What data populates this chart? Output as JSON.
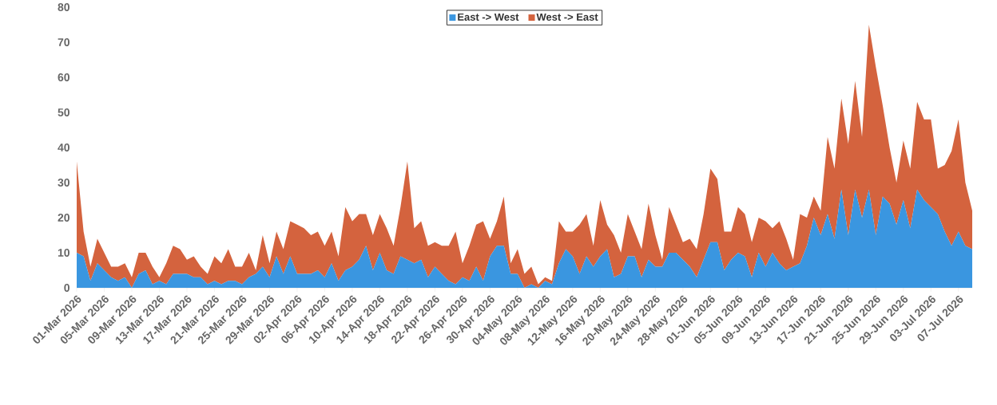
{
  "chart_data": {
    "type": "area",
    "stacked": true,
    "legend": "top",
    "x": [
      "2026-03-01",
      "2026-03-02",
      "2026-03-03",
      "2026-03-04",
      "2026-03-05",
      "2026-03-06",
      "2026-03-07",
      "2026-03-08",
      "2026-03-09",
      "2026-03-10",
      "2026-03-11",
      "2026-03-12",
      "2026-03-13",
      "2026-03-14",
      "2026-03-15",
      "2026-03-16",
      "2026-03-17",
      "2026-03-18",
      "2026-03-19",
      "2026-03-20",
      "2026-03-21",
      "2026-03-22",
      "2026-03-23",
      "2026-03-24",
      "2026-03-25",
      "2026-03-26",
      "2026-03-27",
      "2026-03-28",
      "2026-03-29",
      "2026-03-30",
      "2026-03-31",
      "2026-04-01",
      "2026-04-02",
      "2026-04-03",
      "2026-04-04",
      "2026-04-05",
      "2026-04-06",
      "2026-04-07",
      "2026-04-08",
      "2026-04-09",
      "2026-04-10",
      "2026-04-11",
      "2026-04-12",
      "2026-04-13",
      "2026-04-14",
      "2026-04-15",
      "2026-04-16",
      "2026-04-17",
      "2026-04-18",
      "2026-04-19",
      "2026-04-20",
      "2026-04-21",
      "2026-04-22",
      "2026-04-23",
      "2026-04-24",
      "2026-04-25",
      "2026-04-26",
      "2026-04-27",
      "2026-04-28",
      "2026-04-29",
      "2026-04-30",
      "2026-05-01",
      "2026-05-02",
      "2026-05-03",
      "2026-05-04",
      "2026-05-05",
      "2026-05-06",
      "2026-05-07",
      "2026-05-08",
      "2026-05-09",
      "2026-05-10",
      "2026-05-11",
      "2026-05-12",
      "2026-05-13",
      "2026-05-14",
      "2026-05-15",
      "2026-05-16",
      "2026-05-17",
      "2026-05-18",
      "2026-05-19",
      "2026-05-20",
      "2026-05-21",
      "2026-05-22",
      "2026-05-23",
      "2026-05-24",
      "2026-05-25",
      "2026-05-26",
      "2026-05-27",
      "2026-05-28",
      "2026-05-29",
      "2026-05-30",
      "2026-05-31",
      "2026-06-01",
      "2026-06-02",
      "2026-06-03",
      "2026-06-04",
      "2026-06-05",
      "2026-06-06",
      "2026-06-07",
      "2026-06-08",
      "2026-06-09",
      "2026-06-10",
      "2026-06-11",
      "2026-06-12",
      "2026-06-13",
      "2026-06-14",
      "2026-06-15",
      "2026-06-16",
      "2026-06-17",
      "2026-06-18",
      "2026-06-19",
      "2026-06-20",
      "2026-06-21",
      "2026-06-22",
      "2026-06-23",
      "2026-06-24",
      "2026-06-25",
      "2026-06-26",
      "2026-06-27",
      "2026-06-28",
      "2026-06-29",
      "2026-06-30",
      "2026-07-01",
      "2026-07-02",
      "2026-07-03",
      "2026-07-04",
      "2026-07-05",
      "2026-07-06",
      "2026-07-07",
      "2026-07-08",
      "2026-07-09"
    ],
    "series": [
      {
        "name": "East -> West",
        "color": "#3a96e0",
        "values": [
          10,
          9,
          2,
          7,
          5,
          3,
          2,
          3,
          0,
          4,
          5,
          1,
          2,
          1,
          4,
          4,
          4,
          3,
          3,
          1,
          2,
          1,
          2,
          2,
          1,
          3,
          4,
          6,
          3,
          9,
          4,
          9,
          4,
          4,
          4,
          5,
          3,
          7,
          2,
          5,
          6,
          8,
          12,
          5,
          10,
          5,
          4,
          9,
          8,
          7,
          8,
          3,
          6,
          4,
          2,
          1,
          3,
          2,
          6,
          2,
          9,
          12,
          12,
          4,
          4,
          0,
          1,
          0,
          2,
          1,
          7,
          11,
          9,
          4,
          9,
          6,
          9,
          11,
          3,
          4,
          9,
          9,
          3,
          8,
          6,
          6,
          10,
          10,
          8,
          6,
          3,
          8,
          13,
          13,
          5,
          8,
          10,
          9,
          3,
          10,
          6,
          10,
          7,
          5,
          6,
          7,
          12,
          20,
          15,
          21,
          14,
          28,
          15,
          28,
          20,
          28,
          15,
          26,
          24,
          18,
          25,
          17,
          28,
          25,
          23,
          21,
          16,
          12,
          16,
          12,
          11
        ]
      },
      {
        "name": "West -> East",
        "color": "#d4633e",
        "values": [
          26,
          7,
          4,
          7,
          5,
          3,
          4,
          4,
          3,
          6,
          5,
          5,
          1,
          6,
          8,
          7,
          4,
          6,
          3,
          3,
          7,
          6,
          9,
          4,
          5,
          7,
          1,
          9,
          4,
          7,
          7,
          10,
          14,
          13,
          11,
          11,
          9,
          9,
          7,
          18,
          13,
          13,
          9,
          10,
          11,
          12,
          8,
          14,
          28,
          10,
          11,
          9,
          7,
          8,
          10,
          15,
          4,
          10,
          12,
          17,
          5,
          7,
          14,
          3,
          7,
          4,
          5,
          1,
          1,
          1,
          12,
          5,
          7,
          14,
          12,
          6,
          16,
          7,
          12,
          6,
          12,
          7,
          8,
          16,
          9,
          2,
          13,
          8,
          5,
          8,
          8,
          13,
          21,
          18,
          11,
          8,
          13,
          12,
          10,
          10,
          13,
          7,
          12,
          9,
          2,
          14,
          8,
          6,
          7,
          22,
          20,
          26,
          26,
          31,
          23,
          47,
          48,
          26,
          16,
          12,
          17,
          17,
          25,
          23,
          25,
          13,
          19,
          27,
          32,
          18,
          11
        ]
      }
    ],
    "xlim": [
      "2026-03-01",
      "2026-07-09"
    ],
    "xticks": [
      {
        "value": "2026-03-01",
        "label": "01-Mar 2026"
      },
      {
        "value": "2026-03-05",
        "label": "05-Mar 2026"
      },
      {
        "value": "2026-03-09",
        "label": "09-Mar 2026"
      },
      {
        "value": "2026-03-13",
        "label": "13-Mar 2026"
      },
      {
        "value": "2026-03-17",
        "label": "17-Mar 2026"
      },
      {
        "value": "2026-03-21",
        "label": "21-Mar 2026"
      },
      {
        "value": "2026-03-25",
        "label": "25-Mar 2026"
      },
      {
        "value": "2026-03-29",
        "label": "29-Mar 2026"
      },
      {
        "value": "2026-04-02",
        "label": "02-Apr 2026"
      },
      {
        "value": "2026-04-06",
        "label": "06-Apr 2026"
      },
      {
        "value": "2026-04-10",
        "label": "10-Apr 2026"
      },
      {
        "value": "2026-04-14",
        "label": "14-Apr 2026"
      },
      {
        "value": "2026-04-18",
        "label": "18-Apr 2026"
      },
      {
        "value": "2026-04-22",
        "label": "22-Apr 2026"
      },
      {
        "value": "2026-04-26",
        "label": "26-Apr 2026"
      },
      {
        "value": "2026-04-30",
        "label": "30-Apr 2026"
      },
      {
        "value": "2026-05-04",
        "label": "04-May 2026"
      },
      {
        "value": "2026-05-08",
        "label": "08-May 2026"
      },
      {
        "value": "2026-05-12",
        "label": "12-May 2026"
      },
      {
        "value": "2026-05-16",
        "label": "16-May 2026"
      },
      {
        "value": "2026-05-20",
        "label": "20-May 2026"
      },
      {
        "value": "2026-05-24",
        "label": "24-May 2026"
      },
      {
        "value": "2026-05-28",
        "label": "28-May 2026"
      },
      {
        "value": "2026-06-01",
        "label": "01-Jun 2026"
      },
      {
        "value": "2026-06-05",
        "label": "05-Jun 2026"
      },
      {
        "value": "2026-06-09",
        "label": "09-Jun 2026"
      },
      {
        "value": "2026-06-13",
        "label": "13-Jun 2026"
      },
      {
        "value": "2026-06-17",
        "label": "17-Jun 2026"
      },
      {
        "value": "2026-06-21",
        "label": "21-Jun 2026"
      },
      {
        "value": "2026-06-25",
        "label": "25-Jun 2026"
      },
      {
        "value": "2026-06-29",
        "label": "29-Jun 2026"
      },
      {
        "value": "2026-07-03",
        "label": "03-Jul 2026"
      },
      {
        "value": "2026-07-07",
        "label": "07-Jul 2026"
      }
    ],
    "ylim": [
      0,
      80
    ],
    "yticks": [
      0,
      10,
      20,
      30,
      40,
      50,
      60,
      70,
      80
    ]
  }
}
